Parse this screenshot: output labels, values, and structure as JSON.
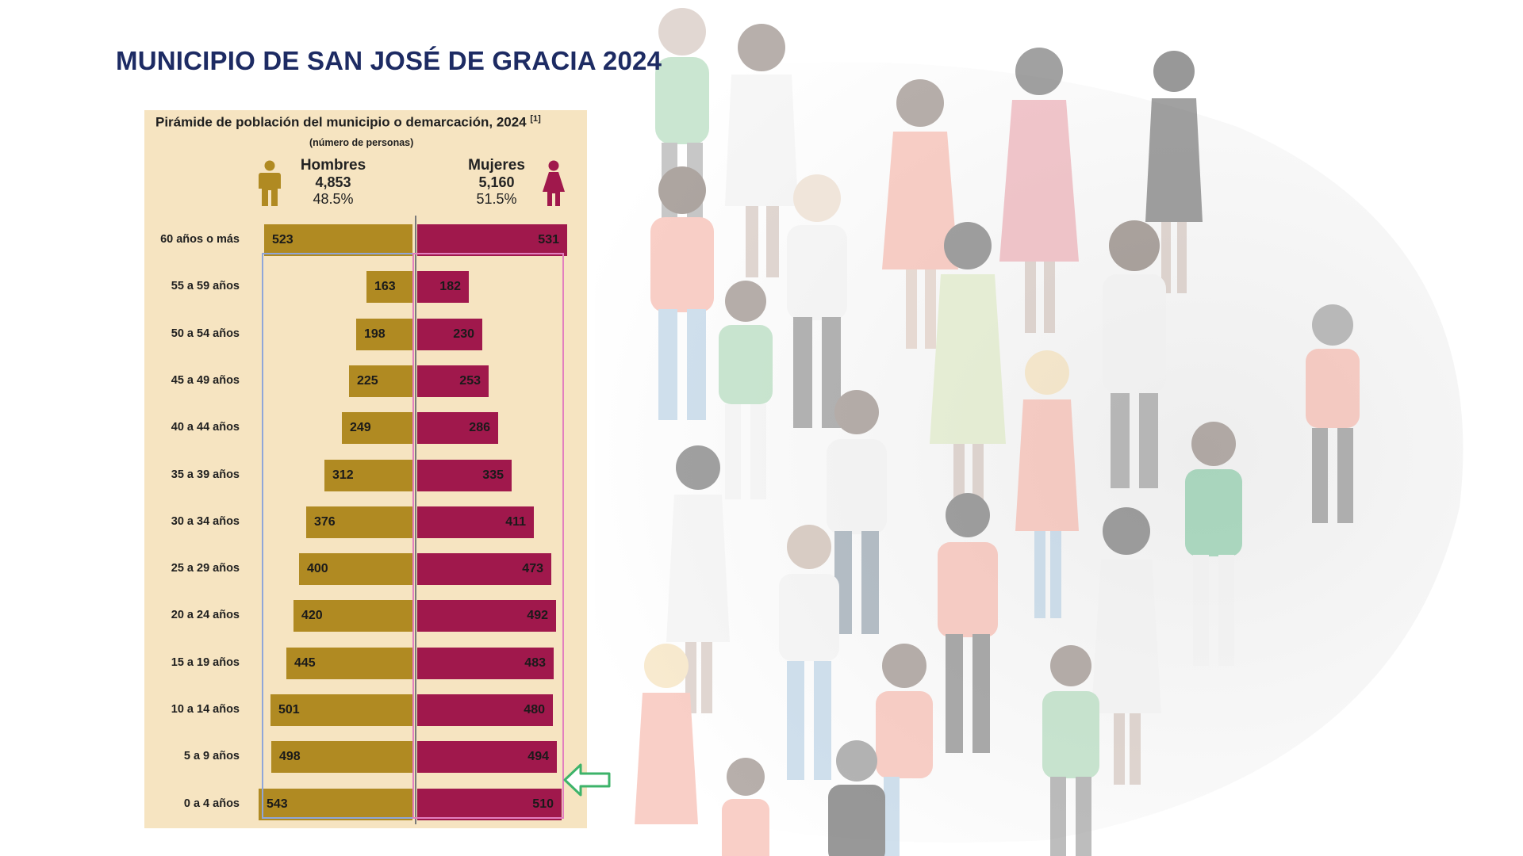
{
  "page_title": "MUNICIPIO DE SAN JOSÉ DE GRACIA 2024",
  "colors": {
    "title": "#1d2b63",
    "panel": "#f6e4c1",
    "men": "#b08a22",
    "women": "#a0184c",
    "men_box": "#8fa6d9",
    "women_box": "#e37fbf",
    "arrow": "#3db36a"
  },
  "icons": {
    "men": "man-icon",
    "women": "woman-icon",
    "arrow": "left-arrow-icon",
    "background": "crowd-illustration"
  },
  "chart_data": {
    "type": "bar",
    "orientation": "population-pyramid",
    "title": "Pirámide de población del municipio o demarcación, 2024",
    "title_note": "[1]",
    "subtitle": "(número de personas)",
    "categories": [
      "60 años o más",
      "55 a 59 años",
      "50 a 54 años",
      "45 a 49 años",
      "40 a 44 años",
      "35 a 39 años",
      "30 a 34 años",
      "25 a 29 años",
      "20 a 24 años",
      "15 a 19 años",
      "10 a 14 años",
      "5 a 9 años",
      "0 a 4 años"
    ],
    "series": [
      {
        "name": "Hombres",
        "total": "4,853",
        "percent": "48.5%",
        "values": [
          523,
          163,
          198,
          225,
          249,
          312,
          376,
          400,
          420,
          445,
          501,
          498,
          543
        ]
      },
      {
        "name": "Mujeres",
        "total": "5,160",
        "percent": "51.5%",
        "values": [
          531,
          182,
          230,
          253,
          286,
          335,
          411,
          473,
          492,
          483,
          480,
          494,
          510
        ]
      }
    ],
    "xlim": [
      0,
      560
    ],
    "legend_position": "top"
  }
}
